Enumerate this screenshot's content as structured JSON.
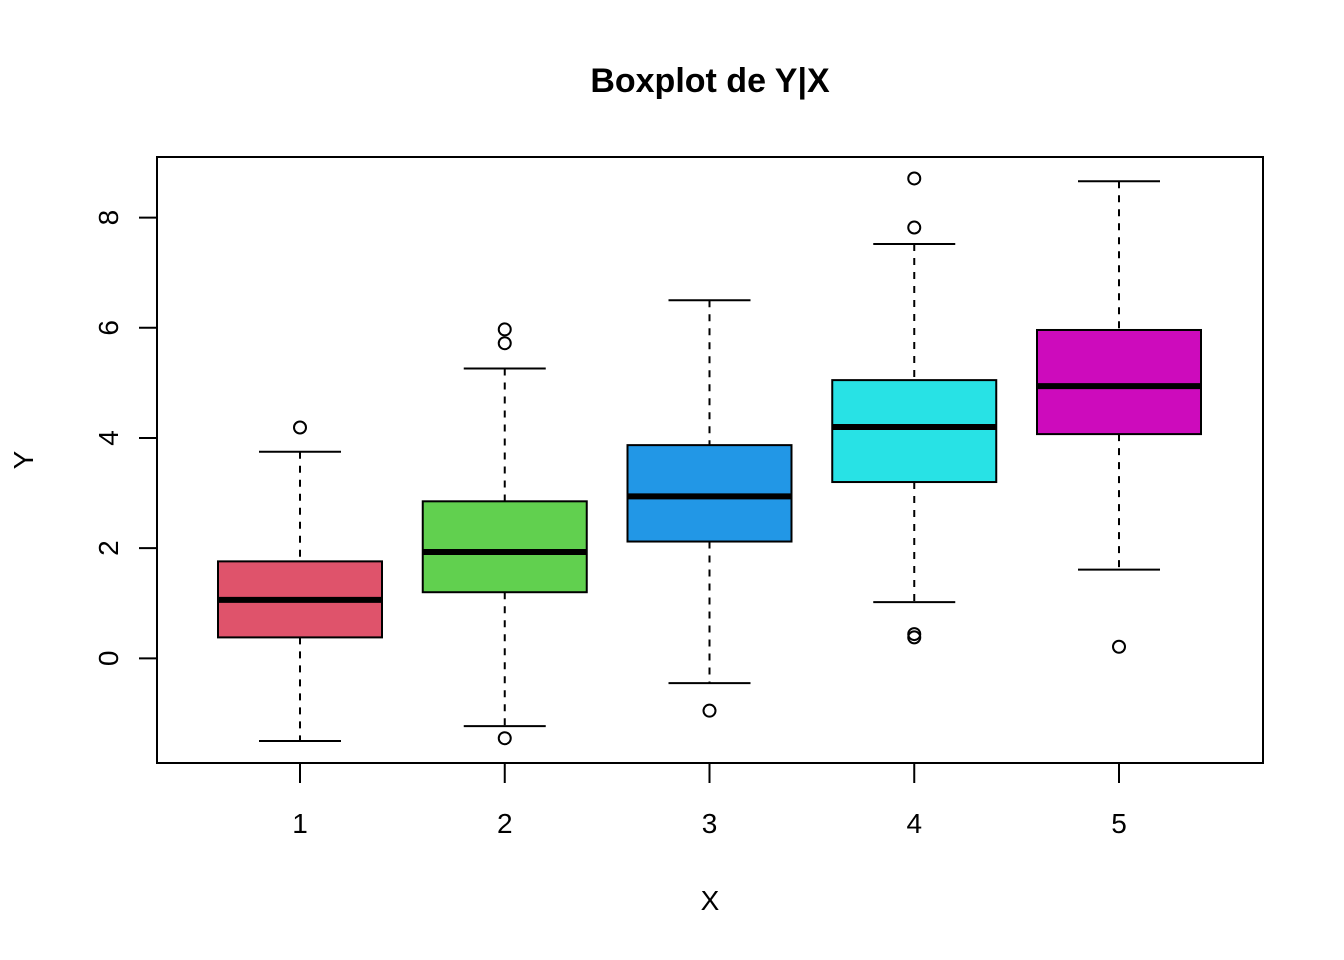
{
  "chart_data": {
    "type": "boxplot",
    "title": "Boxplot de Y|X",
    "xlabel": "X",
    "ylabel": "Y",
    "categories": [
      "1",
      "2",
      "3",
      "4",
      "5"
    ],
    "y_ticks": [
      0,
      2,
      4,
      6,
      8
    ],
    "ylim": [
      -1.9,
      9.1
    ],
    "grid": false,
    "legend": "none",
    "boxes": [
      {
        "category": "1",
        "color": "#DF536B",
        "whisker_low": -1.5,
        "q1": 0.38,
        "median": 1.06,
        "q3": 1.76,
        "whisker_high": 3.75,
        "outliers": [
          4.19
        ]
      },
      {
        "category": "2",
        "color": "#61D04F",
        "whisker_low": -1.23,
        "q1": 1.2,
        "median": 1.93,
        "q3": 2.85,
        "whisker_high": 5.26,
        "outliers": [
          5.72,
          5.97,
          -1.45
        ]
      },
      {
        "category": "3",
        "color": "#2297E6",
        "whisker_low": -0.45,
        "q1": 2.12,
        "median": 2.94,
        "q3": 3.87,
        "whisker_high": 6.5,
        "outliers": [
          -0.95
        ]
      },
      {
        "category": "4",
        "color": "#28E2E5",
        "whisker_low": 1.02,
        "q1": 3.2,
        "median": 4.2,
        "q3": 5.05,
        "whisker_high": 7.52,
        "outliers": [
          8.71,
          7.82,
          0.44,
          0.38
        ]
      },
      {
        "category": "5",
        "color": "#CD0BBC",
        "whisker_low": 1.61,
        "q1": 4.07,
        "median": 4.94,
        "q3": 5.96,
        "whisker_high": 8.66,
        "outliers": [
          0.21
        ]
      }
    ]
  }
}
